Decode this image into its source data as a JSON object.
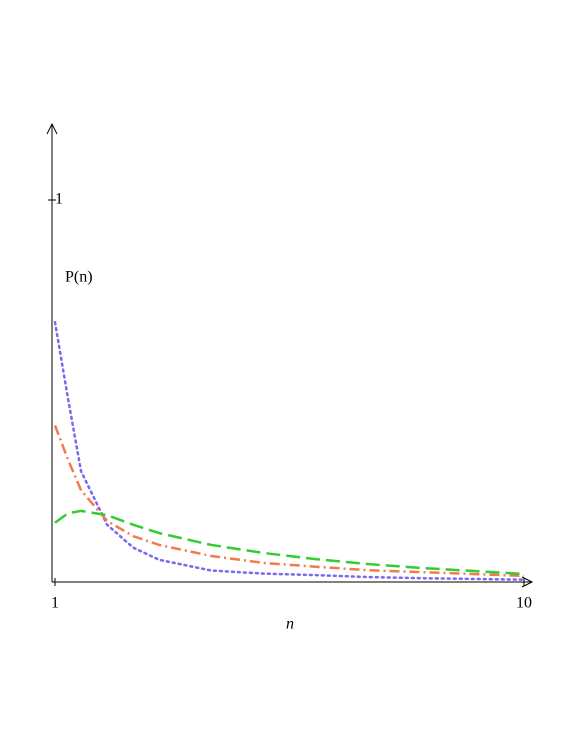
{
  "chart_data": {
    "type": "line",
    "x_label": "n",
    "y_label": "P(n)",
    "x": [
      1,
      1.25,
      1.5,
      2,
      2.5,
      3,
      4,
      5,
      6,
      7,
      8,
      9,
      10
    ],
    "xlim": [
      1,
      10
    ],
    "xticks": [
      1,
      10
    ],
    "ylim": [
      0,
      1.2
    ],
    "yticks": [
      1
    ],
    "series": [
      {
        "color": "#7b68ee",
        "style": "dot",
        "values": [
          0.68,
          0.48,
          0.29,
          0.15,
          0.09,
          0.058,
          0.03,
          0.022,
          0.018,
          0.013,
          0.01,
          0.008,
          0.006
        ]
      },
      {
        "color": "#f4794b",
        "style": "dashdot",
        "values": [
          0.41,
          0.32,
          0.24,
          0.16,
          0.12,
          0.097,
          0.068,
          0.05,
          0.04,
          0.031,
          0.026,
          0.021,
          0.016
        ]
      },
      {
        "color": "#32cd32",
        "style": "dash",
        "values": [
          0.155,
          0.18,
          0.186,
          0.175,
          0.15,
          0.128,
          0.097,
          0.076,
          0.06,
          0.047,
          0.037,
          0.029,
          0.021
        ]
      }
    ]
  }
}
